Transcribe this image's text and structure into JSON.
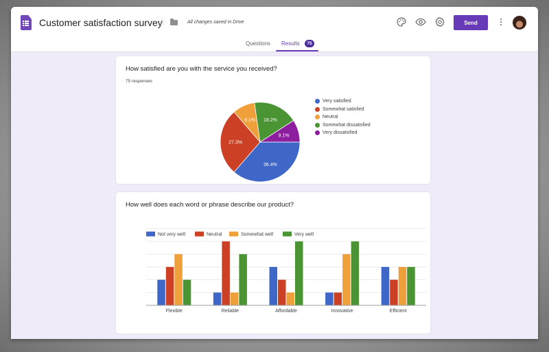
{
  "header": {
    "title": "Customer satisfaction survey",
    "save_status": "All changes saved in Drive",
    "send_label": "Send",
    "icons": [
      "forms-logo-icon",
      "star-icon",
      "folder-icon",
      "palette-icon",
      "eye-icon",
      "gear-icon",
      "more-vert-icon",
      "avatar"
    ]
  },
  "tabs": [
    {
      "label": "Questions",
      "active": false
    },
    {
      "label": "Results",
      "active": true,
      "badge": "75"
    }
  ],
  "colors": {
    "accent": "#673ab7",
    "blue": "#3f67c8",
    "red": "#cc4125",
    "orange": "#f0a03a",
    "green": "#4a9434",
    "purple": "#8e1ea0",
    "background": "#efebf8"
  },
  "questions": [
    {
      "title": "How satisfied are you with the service you received?",
      "responses": "75 responses"
    },
    {
      "title": "How well does each word or phrase describe our product?"
    }
  ],
  "chart_data": [
    {
      "type": "pie",
      "title": "How satisfied are you with the service you received?",
      "subtitle": "75 responses",
      "categories": [
        "Very satisfied",
        "Somewhat satisfied",
        "Neutral",
        "Somewhat dissatisfied",
        "Very dissatisfied"
      ],
      "values": [
        36.4,
        27.3,
        9.1,
        18.2,
        9.1
      ],
      "labels": [
        "36.4%",
        "27.3%",
        "9.1%",
        "18.2%",
        "9.1%"
      ],
      "colors": [
        "#3f67c8",
        "#cc4125",
        "#f0a03a",
        "#4a9434",
        "#8e1ea0"
      ],
      "legend_position": "right"
    },
    {
      "type": "bar",
      "title": "How well does each word or phrase describe our product?",
      "categories": [
        "Flexible",
        "Reliable",
        "Affordable",
        "Innovative",
        "Efficient"
      ],
      "series": [
        {
          "name": "Not very well",
          "color": "#3f67c8",
          "values": [
            2,
            1,
            3,
            1,
            3
          ]
        },
        {
          "name": "Neutral",
          "color": "#cc4125",
          "values": [
            3,
            5,
            2,
            1,
            2
          ]
        },
        {
          "name": "Somewhat well",
          "color": "#f0a03a",
          "values": [
            4,
            1,
            1,
            4,
            3
          ]
        },
        {
          "name": "Very well",
          "color": "#4a9434",
          "values": [
            2,
            4,
            5,
            5,
            3
          ]
        }
      ],
      "xlabel": "",
      "ylabel": "",
      "ylim": [
        0,
        6
      ],
      "grid": true,
      "y_tick_labels_visible": false,
      "legend_position": "top"
    }
  ]
}
